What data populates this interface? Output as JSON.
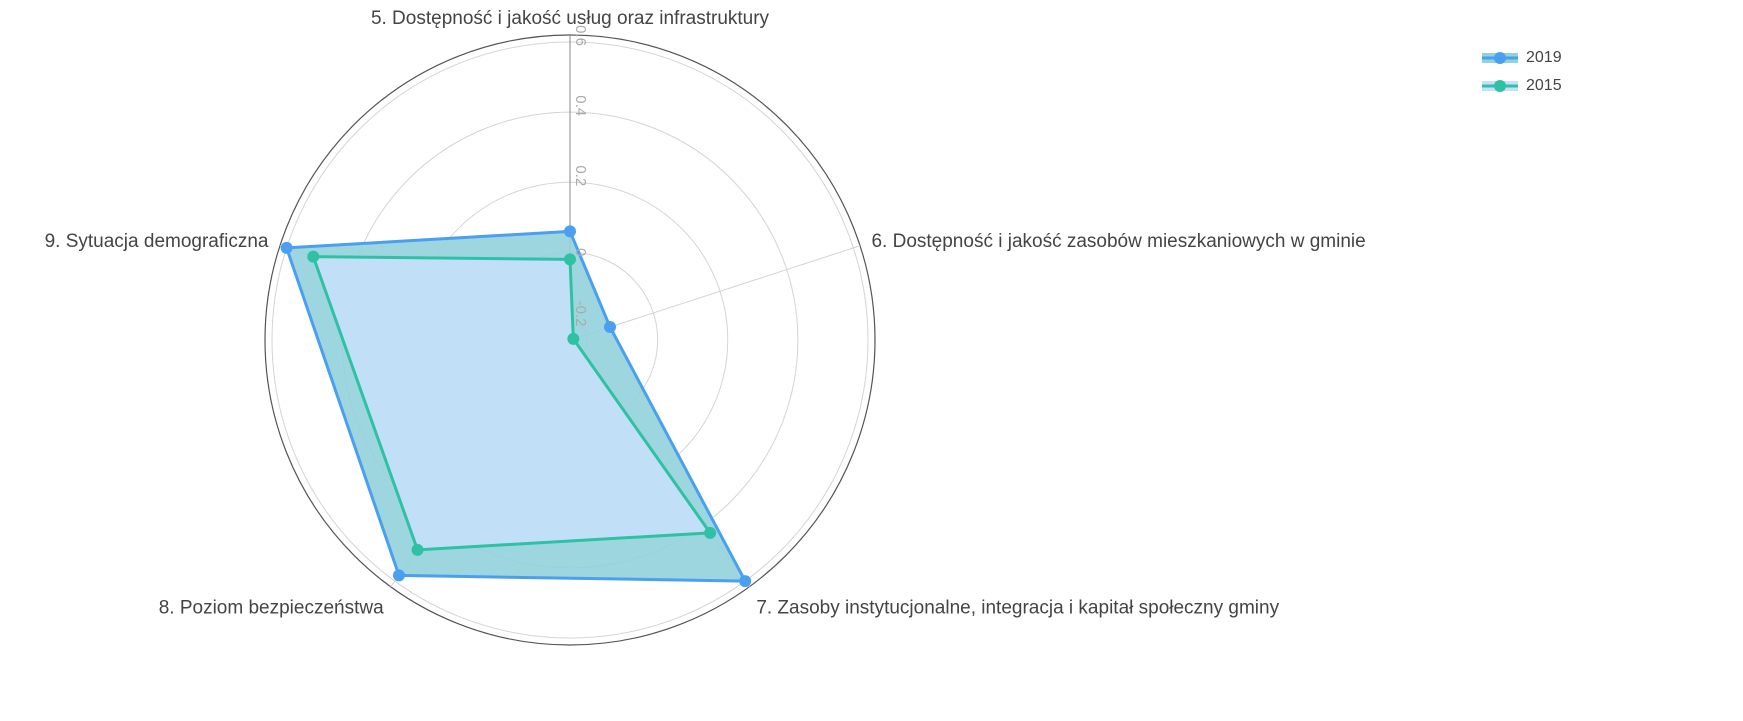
{
  "chart_data": {
    "type": "radar",
    "categories": [
      "5. Dostępność i jakość usług oraz infrastruktury",
      "6. Dostępność i jakość zasobów mieszkaniowych w gminie",
      "7. Zasoby instytucjonalne, integracja i kapitał społeczny gminy",
      "8. Poziom bezpieczeństwa",
      "9. Sytuacja demograficzna"
    ],
    "series": [
      {
        "name": "2019",
        "color": "#4a9ff0",
        "fill": "#93d2dd",
        "values": [
          0.06,
          -0.13,
          0.6,
          0.58,
          0.6
        ]
      },
      {
        "name": "2015",
        "color": "#2fc1a3",
        "fill": "#c4e1fb",
        "values": [
          -0.02,
          -0.24,
          0.43,
          0.49,
          0.52
        ]
      }
    ],
    "rlim": [
      -0.25,
      0.62
    ],
    "rticks": [
      -0.2,
      0,
      0.2,
      0.4,
      0.6
    ],
    "grid": true,
    "legend": "top-right"
  }
}
